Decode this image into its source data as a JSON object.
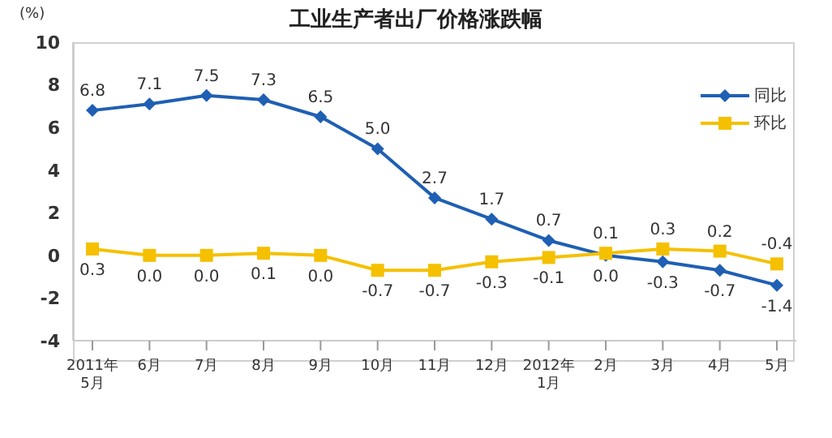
{
  "chart_data": {
    "type": "line",
    "title": "工业生产者出厂价格涨跌幅",
    "ylabel": "(%)",
    "categories": [
      "2011年\n5月",
      "6月",
      "7月",
      "8月",
      "9月",
      "10月",
      "11月",
      "12月",
      "2012年\n1月",
      "2月",
      "3月",
      "4月",
      "5月"
    ],
    "series": [
      {
        "name": "同比",
        "color": "#1f5fb4",
        "marker": "diamond",
        "values": [
          6.8,
          7.1,
          7.5,
          7.3,
          6.5,
          5.0,
          2.7,
          1.7,
          0.7,
          0.0,
          -0.3,
          -0.7,
          -1.4
        ],
        "value_labels": [
          "6.8",
          "7.1",
          "7.5",
          "7.3",
          "6.5",
          "5.0",
          "2.7",
          "1.7",
          "0.7",
          "0.0",
          "-0.3",
          "-0.7",
          "-1.4"
        ]
      },
      {
        "name": "环比",
        "color": "#f5c000",
        "marker": "square",
        "values": [
          0.3,
          0.0,
          0.0,
          0.1,
          0.0,
          -0.7,
          -0.7,
          -0.3,
          -0.1,
          0.1,
          0.3,
          0.2,
          -0.4
        ],
        "value_labels": [
          "0.3",
          "0.0",
          "0.0",
          "0.1",
          "0.0",
          "-0.7",
          "-0.7",
          "-0.3",
          "-0.1",
          "0.1",
          "0.3",
          "0.2",
          "-0.4"
        ]
      }
    ],
    "ylim": [
      -4,
      10
    ],
    "yticks": [
      -4,
      -2,
      0,
      2,
      4,
      6,
      8,
      10
    ],
    "legend": "top right"
  }
}
